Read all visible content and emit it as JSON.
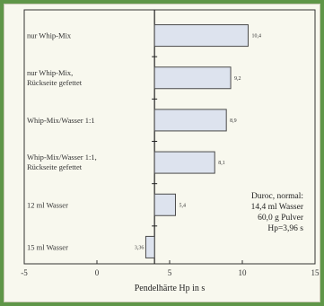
{
  "chart_data": {
    "type": "bar",
    "orientation": "horizontal",
    "categories": [
      "nur Whip-Mix",
      "nur Whip-Mix,\nRückseite gefettet",
      "Whip-Mix/Wasser 1:1",
      "Whip-Mix/Wasser 1:1,\nRückseite gefettet",
      "12 ml Wasser",
      "15 ml Wasser"
    ],
    "values": [
      10.4,
      9.2,
      8.9,
      8.1,
      5.4,
      3.36
    ],
    "value_labels": [
      "10,4",
      "9,2",
      "8,9",
      "8,1",
      "5,4",
      "3,36"
    ],
    "baseline": 3.96,
    "xlim": [
      -5,
      15
    ],
    "xticks": [
      -5,
      0,
      5,
      10,
      15
    ],
    "xlabel": "Pendelhärte Hp in s",
    "ylabel": "",
    "title": "",
    "grid": false,
    "bar_fill": "#dde3ee",
    "bar_stroke": "#4a4a4a",
    "annotation": [
      "Duroc, normal:",
      "14,4 ml Wasser",
      "60,0 g Pulver",
      "Hp=3,96 s"
    ]
  }
}
